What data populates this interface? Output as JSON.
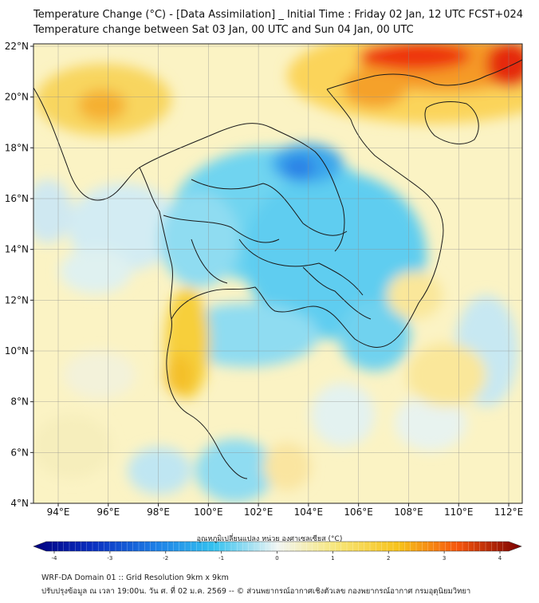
{
  "title_line1": "Temperature Change (°C) - [Data Assimilation] _ Initial Time : Friday 02 Jan, 12 UTC FCST+024",
  "title_line2": "Temperature change between Sat 03 Jan, 00 UTC and Sun 04 Jan, 00 UTC",
  "lat_labels": [
    "22°N",
    "20°N",
    "18°N",
    "16°N",
    "14°N",
    "12°N",
    "10°N",
    "8°N",
    "6°N",
    "4°N"
  ],
  "lon_labels": [
    "94°E",
    "96°E",
    "98°E",
    "100°E",
    "102°E",
    "104°E",
    "106°E",
    "108°E",
    "110°E",
    "112°E"
  ],
  "colorbar": {
    "title": "อุณหภูมิเปลี่ยนแปลง หน่วย องศาเซลเซียส (°C)",
    "ticks": [
      "-4",
      "-3",
      "-2",
      "-1",
      "0",
      "1",
      "2",
      "3",
      "4"
    ],
    "colors": {
      "min": "#00007f",
      "cold": "#0e5ad8",
      "cool": "#35c2ef",
      "neutral": "#f2f6f4",
      "warm": "#f7d23a",
      "hot": "#f5560d",
      "max": "#7a0000"
    }
  },
  "footer_line1": "WRF-DA Domain 01 :: Grid Resolution 9km x 9km",
  "footer_line2": "ปรับปรุงข้อมูล ณ เวลา 19:00น. วัน ศ. ที่ 02 ม.ค. 2569 -- © ส่วนพยากรณ์อากาศเชิงตัวเลข กองพยากรณ์อากาศ กรมอุตุนิยมวิทยา"
}
